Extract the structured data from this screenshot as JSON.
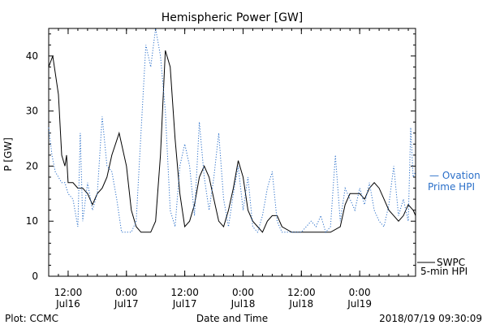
{
  "chart_data": {
    "type": "line",
    "title": "Hemispheric Power [GW]",
    "xlabel": "Date and Time",
    "ylabel": "P [GW]",
    "ylim": [
      0,
      45
    ],
    "yticks": [
      0,
      10,
      20,
      30,
      40
    ],
    "xlim": [
      "2018-07-16 08:00",
      "2018-07-19 11:30"
    ],
    "xticks": [
      {
        "time": "2018-07-16 12:00",
        "top": "12:00",
        "bottom": "Jul16"
      },
      {
        "time": "2018-07-17 00:00",
        "top": "0:00",
        "bottom": "Jul17"
      },
      {
        "time": "2018-07-17 12:00",
        "top": "12:00",
        "bottom": "Jul17"
      },
      {
        "time": "2018-07-18 00:00",
        "top": "0:00",
        "bottom": "Jul18"
      },
      {
        "time": "2018-07-18 12:00",
        "top": "12:00",
        "bottom": "Jul18"
      },
      {
        "time": "2018-07-19 00:00",
        "top": "0:00",
        "bottom": "Jul19"
      }
    ],
    "grid": false,
    "legend_position": "right",
    "series": [
      {
        "name": "SWPC 5-min HPI",
        "color": "#000000",
        "style": "solid",
        "points": [
          [
            "2018-07-16 08:00",
            38
          ],
          [
            "2018-07-16 08:50",
            40
          ],
          [
            "2018-07-16 09:20",
            37
          ],
          [
            "2018-07-16 10:00",
            33
          ],
          [
            "2018-07-16 10:40",
            22
          ],
          [
            "2018-07-16 11:20",
            20
          ],
          [
            "2018-07-16 11:40",
            22
          ],
          [
            "2018-07-16 12:00",
            17
          ],
          [
            "2018-07-16 13:00",
            17
          ],
          [
            "2018-07-16 14:00",
            16
          ],
          [
            "2018-07-16 15:00",
            16
          ],
          [
            "2018-07-16 16:00",
            15
          ],
          [
            "2018-07-16 17:00",
            13
          ],
          [
            "2018-07-16 18:00",
            15
          ],
          [
            "2018-07-16 19:00",
            16
          ],
          [
            "2018-07-16 20:00",
            18
          ],
          [
            "2018-07-16 21:00",
            22
          ],
          [
            "2018-07-16 22:30",
            26
          ],
          [
            "2018-07-17 00:00",
            20
          ],
          [
            "2018-07-17 01:00",
            12
          ],
          [
            "2018-07-17 02:00",
            9
          ],
          [
            "2018-07-17 03:00",
            8
          ],
          [
            "2018-07-17 04:00",
            8
          ],
          [
            "2018-07-17 05:00",
            8
          ],
          [
            "2018-07-17 06:00",
            10
          ],
          [
            "2018-07-17 07:00",
            22
          ],
          [
            "2018-07-17 08:00",
            41
          ],
          [
            "2018-07-17 09:00",
            38
          ],
          [
            "2018-07-17 10:00",
            25
          ],
          [
            "2018-07-17 11:00",
            15
          ],
          [
            "2018-07-17 12:00",
            9
          ],
          [
            "2018-07-17 13:00",
            10
          ],
          [
            "2018-07-17 14:00",
            13
          ],
          [
            "2018-07-17 15:00",
            18
          ],
          [
            "2018-07-17 16:00",
            20
          ],
          [
            "2018-07-17 17:00",
            18
          ],
          [
            "2018-07-17 18:00",
            14
          ],
          [
            "2018-07-17 19:00",
            10
          ],
          [
            "2018-07-17 20:00",
            9
          ],
          [
            "2018-07-17 21:00",
            12
          ],
          [
            "2018-07-17 22:00",
            16
          ],
          [
            "2018-07-17 23:00",
            21
          ],
          [
            "2018-07-18 00:00",
            18
          ],
          [
            "2018-07-18 01:00",
            12
          ],
          [
            "2018-07-18 02:00",
            10
          ],
          [
            "2018-07-18 03:00",
            9
          ],
          [
            "2018-07-18 04:00",
            8
          ],
          [
            "2018-07-18 05:00",
            10
          ],
          [
            "2018-07-18 06:00",
            11
          ],
          [
            "2018-07-18 07:00",
            11
          ],
          [
            "2018-07-18 08:00",
            9
          ],
          [
            "2018-07-18 10:00",
            8
          ],
          [
            "2018-07-18 14:00",
            8
          ],
          [
            "2018-07-18 18:00",
            8
          ],
          [
            "2018-07-18 20:00",
            9
          ],
          [
            "2018-07-18 21:00",
            13
          ],
          [
            "2018-07-18 22:00",
            15
          ],
          [
            "2018-07-19 00:00",
            15
          ],
          [
            "2018-07-19 01:00",
            14
          ],
          [
            "2018-07-19 02:00",
            16
          ],
          [
            "2018-07-19 03:00",
            17
          ],
          [
            "2018-07-19 04:00",
            16
          ],
          [
            "2018-07-19 05:00",
            14
          ],
          [
            "2018-07-19 06:00",
            12
          ],
          [
            "2018-07-19 07:00",
            11
          ],
          [
            "2018-07-19 08:00",
            10
          ],
          [
            "2018-07-19 09:00",
            11
          ],
          [
            "2018-07-19 10:00",
            13
          ],
          [
            "2018-07-19 11:00",
            12
          ],
          [
            "2018-07-19 11:30",
            11
          ]
        ]
      },
      {
        "name": "Ovation Prime HPI",
        "color": "#2a6fc9",
        "style": "dotted",
        "points": [
          [
            "2018-07-16 08:00",
            27
          ],
          [
            "2018-07-16 08:40",
            22
          ],
          [
            "2018-07-16 09:20",
            19
          ],
          [
            "2018-07-16 10:00",
            18
          ],
          [
            "2018-07-16 10:40",
            17
          ],
          [
            "2018-07-16 11:20",
            17
          ],
          [
            "2018-07-16 12:00",
            15
          ],
          [
            "2018-07-16 13:00",
            14
          ],
          [
            "2018-07-16 14:00",
            9
          ],
          [
            "2018-07-16 14:30",
            26
          ],
          [
            "2018-07-16 15:00",
            10
          ],
          [
            "2018-07-16 16:00",
            17
          ],
          [
            "2018-07-16 17:00",
            12
          ],
          [
            "2018-07-16 18:00",
            15
          ],
          [
            "2018-07-16 19:00",
            29
          ],
          [
            "2018-07-16 20:00",
            20
          ],
          [
            "2018-07-16 21:00",
            19
          ],
          [
            "2018-07-16 22:00",
            14
          ],
          [
            "2018-07-16 23:00",
            8
          ],
          [
            "2018-07-17 00:00",
            8
          ],
          [
            "2018-07-17 01:00",
            8
          ],
          [
            "2018-07-17 02:00",
            10
          ],
          [
            "2018-07-17 03:00",
            26
          ],
          [
            "2018-07-17 04:00",
            42
          ],
          [
            "2018-07-17 05:00",
            38
          ],
          [
            "2018-07-17 06:00",
            45
          ],
          [
            "2018-07-17 07:00",
            40
          ],
          [
            "2018-07-17 08:00",
            30
          ],
          [
            "2018-07-17 09:00",
            12
          ],
          [
            "2018-07-17 10:00",
            9
          ],
          [
            "2018-07-17 11:00",
            20
          ],
          [
            "2018-07-17 12:00",
            24
          ],
          [
            "2018-07-17 13:00",
            20
          ],
          [
            "2018-07-17 14:00",
            11
          ],
          [
            "2018-07-17 15:00",
            28
          ],
          [
            "2018-07-17 16:00",
            18
          ],
          [
            "2018-07-17 17:00",
            12
          ],
          [
            "2018-07-17 18:00",
            18
          ],
          [
            "2018-07-17 19:00",
            26
          ],
          [
            "2018-07-17 20:00",
            14
          ],
          [
            "2018-07-17 21:00",
            9
          ],
          [
            "2018-07-17 22:00",
            15
          ],
          [
            "2018-07-17 23:00",
            20
          ],
          [
            "2018-07-18 00:00",
            12
          ],
          [
            "2018-07-18 01:00",
            18
          ],
          [
            "2018-07-18 02:00",
            9
          ],
          [
            "2018-07-18 03:00",
            8
          ],
          [
            "2018-07-18 04:00",
            11
          ],
          [
            "2018-07-18 05:00",
            16
          ],
          [
            "2018-07-18 06:00",
            19
          ],
          [
            "2018-07-18 07:00",
            10
          ],
          [
            "2018-07-18 08:00",
            8
          ],
          [
            "2018-07-18 10:00",
            8
          ],
          [
            "2018-07-18 12:00",
            8
          ],
          [
            "2018-07-18 14:00",
            10
          ],
          [
            "2018-07-18 15:00",
            9
          ],
          [
            "2018-07-18 16:00",
            11
          ],
          [
            "2018-07-18 17:00",
            8
          ],
          [
            "2018-07-18 18:00",
            9
          ],
          [
            "2018-07-18 19:00",
            22
          ],
          [
            "2018-07-18 20:00",
            10
          ],
          [
            "2018-07-18 21:00",
            16
          ],
          [
            "2018-07-18 22:00",
            14
          ],
          [
            "2018-07-18 23:00",
            12
          ],
          [
            "2018-07-19 00:00",
            16
          ],
          [
            "2018-07-19 01:00",
            13
          ],
          [
            "2018-07-19 02:00",
            17
          ],
          [
            "2018-07-19 03:00",
            12
          ],
          [
            "2018-07-19 04:00",
            10
          ],
          [
            "2018-07-19 05:00",
            9
          ],
          [
            "2018-07-19 06:00",
            13
          ],
          [
            "2018-07-19 07:00",
            20
          ],
          [
            "2018-07-19 08:00",
            11
          ],
          [
            "2018-07-19 09:00",
            14
          ],
          [
            "2018-07-19 10:00",
            10
          ],
          [
            "2018-07-19 10:30",
            27
          ],
          [
            "2018-07-19 11:00",
            18
          ],
          [
            "2018-07-19 11:30",
            19
          ]
        ]
      }
    ]
  },
  "legend": {
    "ovation_line1": "— Ovation",
    "ovation_line2": "Prime HPI",
    "swpc_line1": "SWPC",
    "swpc_line2": "5-min HPI"
  },
  "footer": {
    "left": "Plot: CCMC",
    "center": "Date and Time",
    "right": "2018/07/19 09:30:09"
  }
}
